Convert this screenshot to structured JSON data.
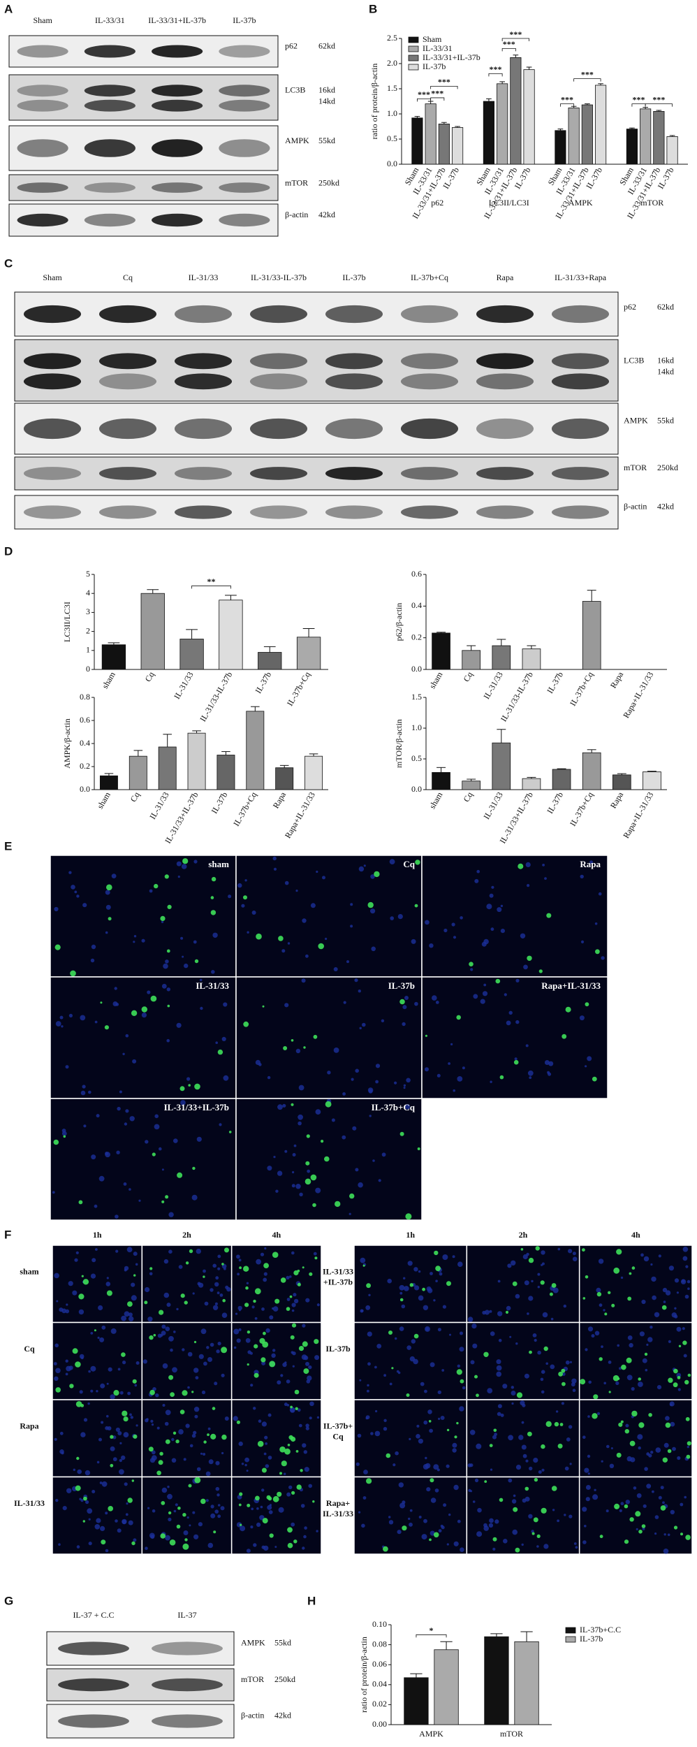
{
  "panel_labels": [
    "A",
    "B",
    "C",
    "D",
    "E",
    "F",
    "G",
    "H"
  ],
  "blot_a": {
    "lanes": [
      "Sham",
      "IL-33/31",
      "IL-33/31+IL-37b",
      "IL-37b"
    ],
    "rows": [
      {
        "label": "p62",
        "sizes": [
          "62kd"
        ]
      },
      {
        "label": "LC3B",
        "sizes": [
          "16kd",
          "14kd"
        ]
      },
      {
        "label": "AMPK",
        "sizes": [
          "55kd"
        ]
      },
      {
        "label": "mTOR",
        "sizes": [
          "250kd"
        ]
      },
      {
        "label": "β-actin",
        "sizes": [
          "42kd"
        ]
      }
    ]
  },
  "blot_c": {
    "lanes": [
      "Sham",
      "Cq",
      "IL-31/33",
      "IL-31/33-IL-37b",
      "IL-37b",
      "IL-37b+Cq",
      "Rapa",
      "IL-31/33+Rapa"
    ],
    "rows": [
      {
        "label": "p62",
        "sizes": [
          "62kd"
        ]
      },
      {
        "label": "LC3B",
        "sizes": [
          "16kd",
          "14kd"
        ]
      },
      {
        "label": "AMPK",
        "sizes": [
          "55kd"
        ]
      },
      {
        "label": "mTOR",
        "sizes": [
          "250kd"
        ]
      },
      {
        "label": "β-actin",
        "sizes": [
          "42kd"
        ]
      }
    ]
  },
  "images_e": {
    "labels": [
      "sham",
      "Cq",
      "Rapa",
      "IL-31/33",
      "IL-37b",
      "Rapa+IL-31/33",
      "IL-31/33+IL-37b",
      "IL-37b+Cq"
    ]
  },
  "images_f": {
    "columns": [
      "1h",
      "2h",
      "4h"
    ],
    "left_rows": [
      [
        "sham"
      ],
      [
        "Cq"
      ],
      [
        "Rapa"
      ],
      [
        "IL-31/33"
      ]
    ],
    "right_rows": [
      [
        "IL-31/33",
        "+IL-37b"
      ],
      [
        "IL-37b"
      ],
      [
        "IL-37b+",
        "Cq"
      ],
      [
        "Rapa+",
        "IL-31/33"
      ]
    ]
  },
  "blot_g": {
    "lanes": [
      "IL-37 + C.C",
      "IL-37"
    ],
    "rows": [
      {
        "label": "AMPK",
        "sizes": [
          "55kd"
        ]
      },
      {
        "label": "mTOR",
        "sizes": [
          "250kd"
        ]
      },
      {
        "label": "β-actin",
        "sizes": [
          "42kd"
        ]
      }
    ]
  },
  "chart_data": [
    {
      "type": "bar",
      "ylabel": "ratio of protein/β-actin",
      "categories": [
        "p62",
        "LC3II/LC3I",
        "AMPK",
        "mTOR"
      ],
      "series": [
        {
          "name": "Sham",
          "color": "#111111",
          "values": [
            0.92,
            1.25,
            0.67,
            0.7
          ],
          "errors": [
            0.03,
            0.05,
            0.03,
            0.02
          ]
        },
        {
          "name": "IL-33/31",
          "color": "#aaaaaa",
          "values": [
            1.2,
            1.6,
            1.12,
            1.1
          ],
          "errors": [
            0.05,
            0.04,
            0.03,
            0.03
          ]
        },
        {
          "name": "IL-33/31+IL-37b",
          "color": "#777777",
          "values": [
            0.8,
            2.12,
            1.18,
            1.05
          ],
          "errors": [
            0.03,
            0.05,
            0.02,
            0.02
          ]
        },
        {
          "name": "IL-37b",
          "color": "#dddddd",
          "values": [
            0.73,
            1.88,
            1.57,
            0.55
          ],
          "errors": [
            0.02,
            0.05,
            0.03,
            0.02
          ]
        }
      ],
      "ylim": [
        0,
        2.5
      ],
      "yticks": [
        {
          "value": 0,
          "label": "0.0"
        },
        0.5,
        {
          "value": 1,
          "label": "1.0"
        },
        1.5,
        {
          "value": 2,
          "label": "2.0"
        },
        2.5
      ],
      "legend": "upper left",
      "annotations": [
        "***",
        "***",
        "***",
        "***",
        "***",
        "***",
        "***",
        "***",
        "***",
        "***"
      ]
    },
    {
      "type": "bar",
      "ylabel": "LC3II/LC3I",
      "categories": [
        "sham",
        "Cq",
        "IL-31/33",
        "IL-31/33-IL-37b",
        "IL-37b",
        "IL-37b+Cq"
      ],
      "values": [
        1.3,
        4.0,
        1.6,
        3.65,
        0.9,
        1.7
      ],
      "errors": [
        0.1,
        0.2,
        0.5,
        0.25,
        0.3,
        0.45
      ],
      "colors": [
        "#111111",
        "#999999",
        "#777777",
        "#dddddd",
        "#666666",
        "#aaaaaa"
      ],
      "ylim": [
        0,
        5
      ],
      "yticks": [
        0,
        1,
        2,
        3,
        4,
        5
      ],
      "annotations": [
        "**"
      ]
    },
    {
      "type": "bar",
      "ylabel": "p62/β-actin",
      "categories": [
        "sham",
        "Cq",
        "IL-31/33",
        "IL-31/33-IL-37b",
        "IL-37b",
        "IL-37b+Cq",
        "Rapa",
        "Rapa+IL-31/33"
      ],
      "values": [
        0.23,
        0.12,
        0.15,
        0.13,
        null,
        0.43,
        null,
        null
      ],
      "errors": [
        0.005,
        0.03,
        0.04,
        0.02,
        null,
        0.07,
        null,
        null
      ],
      "colors": [
        "#111111",
        "#999999",
        "#777777",
        "#cccccc",
        "#666666",
        "#999999",
        "#555555",
        "#dddddd"
      ],
      "ylim": [
        0,
        0.6
      ],
      "yticks": [
        {
          "value": 0,
          "label": "0.0"
        },
        0.2,
        0.4,
        0.6
      ]
    },
    {
      "type": "bar",
      "ylabel": "AMPK/β-actin",
      "categories": [
        "sham",
        "Cq",
        "IL-31/33",
        "IL-31/33+IL-37b",
        "IL-37b",
        "IL-37b+Cq",
        "Rapa",
        "Rapa+IL-31/33"
      ],
      "values": [
        0.12,
        0.29,
        0.37,
        0.49,
        0.3,
        0.68,
        0.19,
        0.29
      ],
      "errors": [
        0.02,
        0.05,
        0.11,
        0.02,
        0.03,
        0.04,
        0.02,
        0.02
      ],
      "colors": [
        "#111111",
        "#999999",
        "#777777",
        "#cccccc",
        "#666666",
        "#999999",
        "#555555",
        "#dddddd"
      ],
      "ylim": [
        0,
        0.8
      ],
      "yticks": [
        {
          "value": 0,
          "label": "0.0"
        },
        0.2,
        0.4,
        0.6,
        0.8
      ]
    },
    {
      "type": "bar",
      "ylabel": "mTOR/β-actin",
      "categories": [
        "sham",
        "Cq",
        "IL-31/33",
        "IL-31/33+IL-37b",
        "IL-37b",
        "IL-37b+Cq",
        "Rapa",
        "Rapa+IL-31/33"
      ],
      "values": [
        0.28,
        0.14,
        0.76,
        0.18,
        0.33,
        0.6,
        0.24,
        0.29
      ],
      "errors": [
        0.08,
        0.03,
        0.22,
        0.02,
        0.01,
        0.05,
        0.02,
        0.01
      ],
      "colors": [
        "#111111",
        "#999999",
        "#777777",
        "#cccccc",
        "#666666",
        "#999999",
        "#555555",
        "#dddddd"
      ],
      "ylim": [
        0,
        1.5
      ],
      "yticks": [
        {
          "value": 0,
          "label": "0.0"
        },
        0.5,
        {
          "value": 1,
          "label": "1.0"
        },
        1.5
      ]
    },
    {
      "type": "bar",
      "ylabel": "ratio of protein/β-actin",
      "categories": [
        "AMPK",
        "mTOR"
      ],
      "series": [
        {
          "name": "IL-37b+C.C",
          "color": "#111111",
          "values": [
            0.047,
            0.088
          ],
          "errors": [
            0.004,
            0.003
          ]
        },
        {
          "name": "IL-37b",
          "color": "#aaaaaa",
          "values": [
            0.075,
            0.083
          ],
          "errors": [
            0.008,
            0.01
          ]
        }
      ],
      "ylim": [
        0,
        0.1
      ],
      "yticks": [
        {
          "value": 0,
          "label": "0.00"
        },
        {
          "value": 0.02,
          "label": "0.02"
        },
        {
          "value": 0.04,
          "label": "0.04"
        },
        {
          "value": 0.06,
          "label": "0.06"
        },
        {
          "value": 0.08,
          "label": "0.08"
        },
        {
          "value": 0.1,
          "label": "0.10"
        }
      ],
      "legend": "right",
      "annotations": [
        "*"
      ]
    }
  ]
}
